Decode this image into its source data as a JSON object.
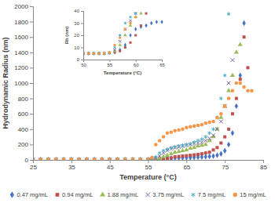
{
  "chart_data": [
    {
      "type": "scatter",
      "x_label": "Temperature (°C)",
      "y_label": "Hydrodynamic Radius (nm)",
      "xlim": [
        25,
        85
      ],
      "xticks": [
        25,
        35,
        45,
        55,
        65,
        75,
        85
      ],
      "ylim": [
        0,
        2000
      ],
      "yticks": [
        0,
        200,
        400,
        600,
        800,
        1000,
        1200,
        1400,
        1600,
        1800,
        2000
      ],
      "grid": false,
      "legend": "bottom",
      "series": [
        {
          "name": "0.47 mg/mL",
          "color": "#4472c4",
          "marker": "diamond",
          "x": [
            25,
            27,
            29,
            31,
            33,
            35,
            37,
            39,
            41,
            43,
            45,
            47,
            49,
            51,
            53,
            55,
            56,
            57,
            58,
            59,
            60,
            61,
            62,
            63,
            64,
            65,
            66,
            67,
            68,
            69,
            70,
            71,
            72,
            73,
            74,
            75,
            76,
            77,
            78,
            79,
            80
          ],
          "values": [
            4,
            4,
            4,
            4,
            4,
            4,
            4,
            4,
            4,
            4,
            4,
            4,
            4,
            4,
            4,
            4,
            5,
            7,
            10,
            15,
            20,
            22,
            25,
            27,
            28,
            30,
            30,
            32,
            35,
            38,
            40,
            45,
            50,
            60,
            80,
            120,
            200,
            350,
            700,
            1100,
            1780
          ]
        },
        {
          "name": "0.94 mg/mL",
          "color": "#c0504d",
          "marker": "square",
          "x": [
            25,
            27,
            29,
            31,
            33,
            35,
            37,
            39,
            41,
            43,
            45,
            47,
            49,
            51,
            53,
            55,
            56,
            57,
            58,
            59,
            60,
            61,
            62,
            63,
            64,
            65,
            66,
            67,
            68,
            69,
            70,
            71,
            72,
            73,
            74,
            75,
            76,
            77,
            78,
            79,
            80,
            81
          ],
          "values": [
            4,
            4,
            4,
            4,
            4,
            4,
            4,
            4,
            4,
            4,
            4,
            4,
            4,
            4,
            4,
            4,
            5,
            6,
            8,
            12,
            18,
            25,
            40,
            45,
            50,
            55,
            60,
            65,
            70,
            80,
            90,
            100,
            130,
            160,
            220,
            300,
            400,
            600,
            800,
            1050,
            1600,
            1200
          ]
        },
        {
          "name": "1.88 mg/mL",
          "color": "#9bbb59",
          "marker": "triangle",
          "x": [
            25,
            27,
            29,
            31,
            33,
            35,
            37,
            39,
            41,
            43,
            45,
            47,
            49,
            51,
            53,
            55,
            56,
            57,
            58,
            59,
            60,
            61,
            62,
            63,
            64,
            65,
            66,
            67,
            68,
            69,
            70,
            71,
            72,
            73,
            74,
            75,
            76,
            77,
            78,
            79
          ],
          "values": [
            4,
            4,
            4,
            4,
            4,
            4,
            4,
            4,
            4,
            4,
            4,
            4,
            4,
            4,
            4,
            4,
            6,
            10,
            20,
            40,
            60,
            80,
            100,
            110,
            120,
            130,
            150,
            160,
            180,
            190,
            200,
            250,
            300,
            400,
            550,
            700,
            900,
            1100,
            1400,
            1500
          ]
        },
        {
          "name": "3.75 mg/mL",
          "color": "#8064a2",
          "marker": "x",
          "x": [
            25,
            27,
            29,
            31,
            33,
            35,
            37,
            39,
            41,
            43,
            45,
            47,
            49,
            51,
            53,
            55,
            56,
            57,
            58,
            59,
            60,
            61,
            62,
            63,
            64,
            65,
            66,
            67,
            68,
            69,
            70,
            71,
            72,
            73,
            74,
            75,
            76,
            77
          ],
          "values": [
            4,
            4,
            4,
            4,
            4,
            4,
            4,
            4,
            4,
            4,
            4,
            4,
            4,
            4,
            4,
            4,
            8,
            20,
            50,
            90,
            120,
            140,
            160,
            170,
            180,
            190,
            200,
            210,
            220,
            230,
            250,
            280,
            320,
            400,
            500,
            700,
            1000,
            1300
          ]
        },
        {
          "name": "7.5 mg/mL",
          "color": "#4bacc6",
          "marker": "asterisk",
          "x": [
            25,
            27,
            29,
            31,
            33,
            35,
            37,
            39,
            41,
            43,
            45,
            47,
            49,
            51,
            53,
            55,
            56,
            57,
            58,
            59,
            60,
            61,
            62,
            63,
            64,
            65,
            66,
            67,
            68,
            69,
            70,
            71,
            72,
            73,
            74,
            75,
            76
          ],
          "values": [
            4,
            4,
            4,
            4,
            4,
            4,
            4,
            4,
            4,
            4,
            4,
            4,
            4,
            4,
            4,
            4,
            15,
            40,
            90,
            120,
            140,
            160,
            170,
            180,
            190,
            200,
            210,
            230,
            250,
            270,
            300,
            350,
            400,
            550,
            800,
            1100,
            1900
          ]
        },
        {
          "name": "15 mg/mL",
          "color": "#f79646",
          "marker": "circle",
          "x": [
            25,
            27,
            29,
            31,
            33,
            35,
            37,
            39,
            41,
            43,
            45,
            47,
            49,
            51,
            53,
            55,
            56,
            57,
            58,
            59,
            60,
            61,
            62,
            63,
            64,
            65,
            66,
            67,
            68,
            69,
            70,
            71,
            72,
            73,
            74,
            75,
            76,
            77,
            78,
            79,
            80,
            81,
            82
          ],
          "values": [
            5,
            5,
            5,
            5,
            5,
            5,
            5,
            5,
            5,
            5,
            5,
            5,
            5,
            5,
            5,
            5,
            30,
            200,
            250,
            300,
            350,
            360,
            380,
            390,
            400,
            420,
            430,
            440,
            450,
            460,
            480,
            490,
            500,
            550,
            600,
            700,
            800,
            900,
            1000,
            1000,
            950,
            900,
            900
          ]
        }
      ]
    },
    {
      "type": "scatter",
      "x_label": "Temperature (°C)",
      "y_label": "Rh (nm)",
      "xlim": [
        50,
        65
      ],
      "xticks": [
        50,
        55,
        60,
        65
      ],
      "ylim": [
        0,
        40
      ],
      "yticks": [
        0,
        10,
        20,
        30,
        40
      ],
      "grid": false,
      "series": [
        {
          "color": "#4472c4",
          "marker": "diamond",
          "x": [
            50,
            51,
            52,
            53,
            54,
            55,
            56,
            57,
            58,
            59,
            60,
            61,
            62,
            63,
            64,
            65
          ],
          "values": [
            5,
            5,
            5,
            5,
            5,
            5.5,
            6,
            8,
            12,
            20,
            25,
            27,
            28,
            30,
            31,
            31
          ]
        },
        {
          "color": "#c0504d",
          "marker": "square",
          "x": [
            50,
            51,
            52,
            53,
            54,
            55,
            56,
            57,
            58,
            59,
            60,
            61,
            62
          ],
          "values": [
            5,
            5,
            5,
            5,
            5,
            5.5,
            6,
            7,
            10,
            14,
            20,
            28,
            38
          ]
        },
        {
          "color": "#9bbb59",
          "marker": "triangle",
          "x": [
            50,
            51,
            52,
            53,
            54,
            55,
            56,
            57,
            58,
            59,
            60,
            61
          ],
          "values": [
            5,
            5,
            5,
            5,
            5,
            5.5,
            7,
            12,
            20,
            28,
            35,
            38
          ]
        },
        {
          "color": "#8064a2",
          "marker": "x",
          "x": [
            50,
            51,
            52,
            53,
            54,
            55,
            56,
            57,
            58,
            59,
            60
          ],
          "values": [
            5,
            5,
            5,
            5,
            5,
            5.5,
            8,
            15,
            25,
            32,
            38
          ]
        },
        {
          "color": "#4bacc6",
          "marker": "asterisk",
          "x": [
            50,
            51,
            52,
            53,
            54,
            55,
            56,
            57,
            58,
            59,
            60
          ],
          "values": [
            5,
            5,
            5,
            5,
            5,
            5.5,
            10,
            20,
            30,
            35,
            38
          ]
        },
        {
          "color": "#f79646",
          "marker": "circle",
          "x": [
            50,
            51,
            52,
            53,
            54,
            55,
            56,
            57,
            58,
            59,
            60
          ],
          "values": [
            5,
            5,
            5,
            5,
            5,
            6,
            12,
            18,
            25,
            30,
            35
          ]
        }
      ]
    }
  ]
}
